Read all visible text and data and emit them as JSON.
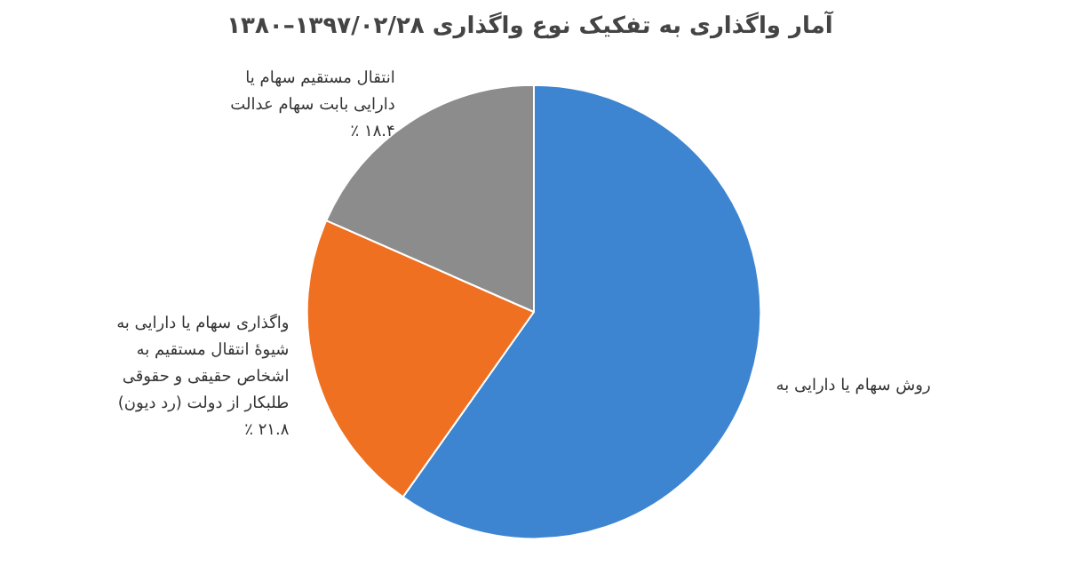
{
  "chart_data": {
    "type": "pie",
    "title": "آمار واگذاری به تفکیک نوع واگذاری  ۱۳۹۷/۰۲/۲۸–۱۳۸۰",
    "categories": [
      "روش سهام یا دارایی به",
      "واگذاری سهام یا دارایی به\nشیوهٔ انتقال مستقیم به\nاشخاص حقیقی و حقوقی\nطلبکار از دولت (رد دیون)",
      "انتقال مستقیم سهام یا\nدارایی بابت سهام عدالت"
    ],
    "values": [
      59.8,
      21.8,
      18.4
    ],
    "colors": [
      "#3d85d1",
      "#f07021",
      "#8c8c8c"
    ],
    "value_labels": [
      null,
      "٪ ۲۱.۸",
      "٪ ۱۸.۴"
    ]
  }
}
